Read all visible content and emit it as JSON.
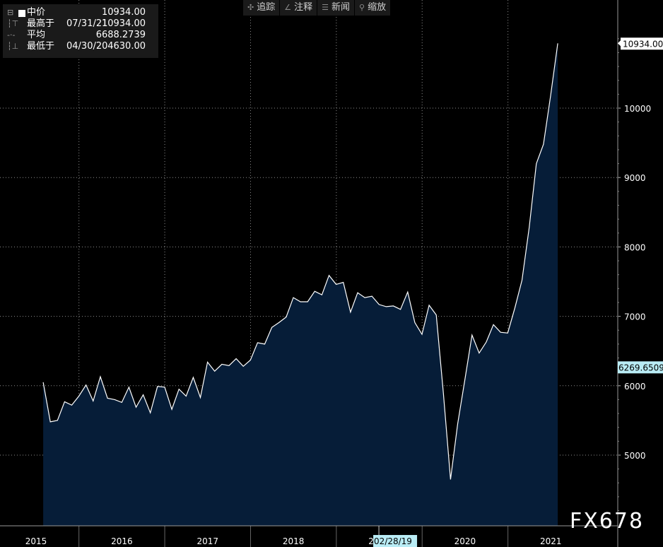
{
  "legend": {
    "series_label": "中价",
    "series_value": "10934.00",
    "high_label": "最高于",
    "high_date": "07/31/21",
    "high_value": "10934.00",
    "avg_label": "平均",
    "avg_value": "6688.2739",
    "low_label": "最低于",
    "low_date": "04/30/20",
    "low_value": "4630.00"
  },
  "toolbar": {
    "trace": "追踪",
    "annotate": "注释",
    "news": "新闻",
    "zoom": "缩放"
  },
  "watermark": "FX678",
  "colors": {
    "fill": "#061d38",
    "line": "#ffffff",
    "background": "#000000",
    "grid": "#8c8c8c"
  },
  "chart_data": {
    "type": "area",
    "ylim": [
      4000,
      11300
    ],
    "yticks": [
      5000,
      6000,
      7000,
      8000,
      9000,
      10000
    ],
    "ytick_labels": [
      "5000",
      "6000",
      "7000",
      "8000",
      "9000",
      "10000"
    ],
    "year_labels": [
      {
        "year": "2015",
        "x": 2015.0
      },
      {
        "year": "2016",
        "x": 2016.0
      },
      {
        "year": "2017",
        "x": 2017.0
      },
      {
        "year": "2018",
        "x": 2018.0
      },
      {
        "year": "2019",
        "x": 2019.0
      },
      {
        "year": "2020",
        "x": 2020.0
      },
      {
        "year": "2021",
        "x": 2021.0
      }
    ],
    "year_boundaries": [
      2015.5,
      2016.5,
      2017.5,
      2018.5,
      2019.5,
      2020.5
    ],
    "cursor_label": "02/28/19",
    "cursor_x": 2018.996,
    "last_value_label": "10934.00",
    "last_value": 10934,
    "secondary_value_label": "6269.6509",
    "secondary_value": 6269.6509,
    "series": [
      {
        "name": "中价",
        "x_start": 2015.083,
        "x_step": 0.0833,
        "values": [
          6050,
          5480,
          5500,
          5770,
          5720,
          5850,
          6010,
          5780,
          6130,
          5820,
          5800,
          5760,
          5980,
          5690,
          5870,
          5610,
          5990,
          5980,
          5660,
          5950,
          5850,
          6120,
          5830,
          6340,
          6210,
          6310,
          6290,
          6390,
          6280,
          6370,
          6620,
          6600,
          6840,
          6910,
          6990,
          7270,
          7210,
          7210,
          7360,
          7310,
          7590,
          7460,
          7490,
          7060,
          7340,
          7270,
          7290,
          7170,
          7140,
          7150,
          7100,
          7350,
          6910,
          6740,
          7160,
          7020,
          5890,
          4650,
          5450,
          6080,
          6730,
          6470,
          6630,
          6880,
          6770,
          6760,
          7120,
          7520,
          8280,
          9200,
          9480,
          10180,
          10934
        ]
      }
    ]
  }
}
